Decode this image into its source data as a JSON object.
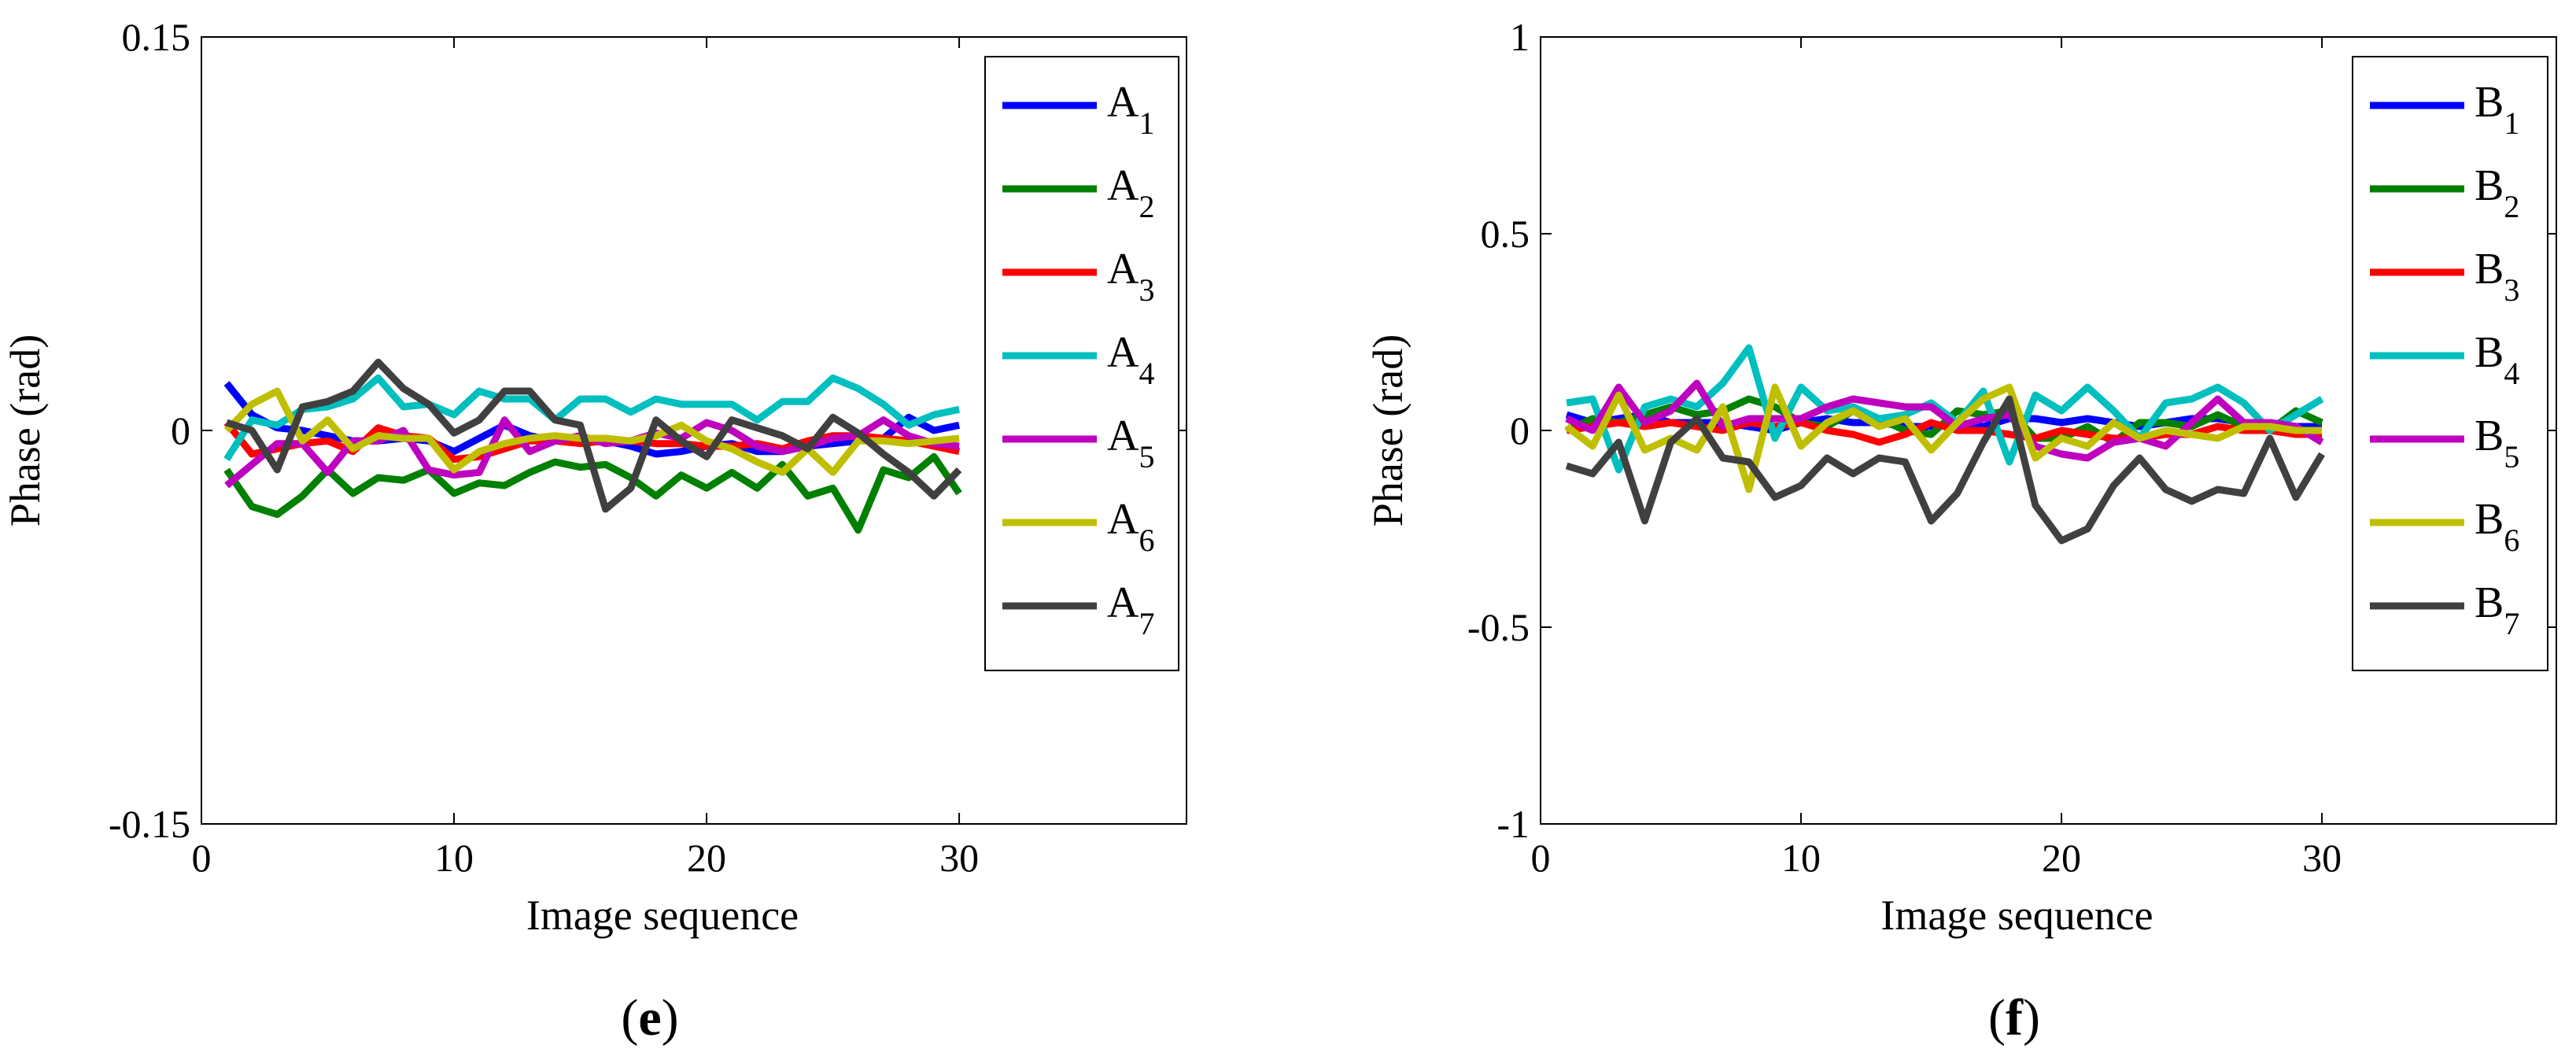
{
  "chart_data": [
    {
      "type": "line",
      "panel_label": "e",
      "xlabel": "Image sequence",
      "ylabel": "Phase (rad)",
      "xlim": [
        0,
        39
      ],
      "ylim": [
        -0.15,
        0.15
      ],
      "x_ticks": [
        0,
        10,
        20,
        30
      ],
      "x_tick_labels": [
        "0",
        "10",
        "20",
        "30"
      ],
      "y_ticks": [
        -0.15,
        0,
        0.15
      ],
      "y_tick_labels": [
        "-0.15",
        "0",
        "0.15"
      ],
      "grid": false,
      "legend_position": "top-right",
      "x": [
        1,
        2,
        3,
        4,
        5,
        6,
        7,
        8,
        9,
        10,
        11,
        12,
        13,
        14,
        15,
        16,
        17,
        18,
        19,
        20,
        21,
        22,
        23,
        24,
        25,
        26,
        27,
        28,
        29,
        30
      ],
      "series": [
        {
          "name": "A",
          "sub": "1",
          "color": "#0000ff",
          "values": [
            0.018,
            0.006,
            0.001,
            0.0,
            -0.002,
            -0.004,
            -0.004,
            -0.003,
            -0.004,
            -0.008,
            -0.003,
            0.002,
            -0.002,
            -0.004,
            -0.004,
            -0.004,
            -0.006,
            -0.009,
            -0.008,
            -0.006,
            -0.005,
            -0.008,
            -0.008,
            -0.006,
            -0.005,
            -0.004,
            -0.003,
            0.005,
            0.0,
            0.002
          ]
        },
        {
          "name": "A",
          "sub": "2",
          "color": "#008000",
          "values": [
            -0.015,
            -0.029,
            -0.032,
            -0.025,
            -0.015,
            -0.024,
            -0.018,
            -0.019,
            -0.015,
            -0.024,
            -0.02,
            -0.021,
            -0.016,
            -0.012,
            -0.014,
            -0.013,
            -0.018,
            -0.025,
            -0.017,
            -0.022,
            -0.016,
            -0.022,
            -0.013,
            -0.025,
            -0.022,
            -0.038,
            -0.015,
            -0.018,
            -0.01,
            -0.024
          ]
        },
        {
          "name": "A",
          "sub": "3",
          "color": "#ff0000",
          "values": [
            0.003,
            -0.009,
            -0.007,
            -0.005,
            -0.004,
            -0.008,
            0.001,
            -0.002,
            -0.003,
            -0.011,
            -0.01,
            -0.007,
            -0.004,
            -0.004,
            -0.005,
            -0.004,
            -0.004,
            -0.005,
            -0.005,
            -0.006,
            -0.006,
            -0.005,
            -0.007,
            -0.004,
            -0.002,
            -0.002,
            -0.003,
            -0.004,
            -0.006,
            -0.008
          ]
        },
        {
          "name": "A",
          "sub": "4",
          "color": "#00bfbf",
          "values": [
            -0.011,
            0.004,
            0.002,
            0.008,
            0.009,
            0.012,
            0.02,
            0.009,
            0.01,
            0.006,
            0.015,
            0.012,
            0.012,
            0.004,
            0.012,
            0.012,
            0.007,
            0.012,
            0.01,
            0.01,
            0.01,
            0.004,
            0.011,
            0.011,
            0.02,
            0.016,
            0.01,
            0.002,
            0.006,
            0.008
          ]
        },
        {
          "name": "A",
          "sub": "5",
          "color": "#bf00bf",
          "values": [
            -0.021,
            -0.013,
            -0.005,
            -0.005,
            -0.016,
            -0.004,
            -0.004,
            0.0,
            -0.015,
            -0.017,
            -0.016,
            0.004,
            -0.008,
            -0.004,
            -0.002,
            -0.005,
            -0.004,
            -0.001,
            -0.003,
            0.003,
            0.0,
            -0.006,
            -0.008,
            -0.006,
            -0.003,
            -0.002,
            0.004,
            -0.002,
            -0.005,
            -0.006
          ]
        },
        {
          "name": "A",
          "sub": "6",
          "color": "#bfbf00",
          "values": [
            0.0,
            0.01,
            0.015,
            -0.004,
            0.004,
            -0.007,
            -0.002,
            -0.003,
            -0.003,
            -0.015,
            -0.008,
            -0.005,
            -0.003,
            -0.002,
            -0.003,
            -0.003,
            -0.004,
            -0.002,
            0.002,
            -0.004,
            -0.007,
            -0.012,
            -0.016,
            -0.007,
            -0.016,
            -0.004,
            -0.004,
            -0.005,
            -0.004,
            -0.003
          ]
        },
        {
          "name": "A",
          "sub": "7",
          "color": "#404040",
          "values": [
            0.003,
            0.0,
            -0.015,
            0.009,
            0.011,
            0.015,
            0.026,
            0.016,
            0.01,
            -0.001,
            0.004,
            0.015,
            0.015,
            0.004,
            0.002,
            -0.03,
            -0.022,
            0.004,
            -0.004,
            -0.01,
            0.004,
            0.001,
            -0.002,
            -0.007,
            0.005,
            -0.001,
            -0.009,
            -0.016,
            -0.025,
            -0.015
          ]
        }
      ]
    },
    {
      "type": "line",
      "panel_label": "f",
      "xlabel": "Image sequence",
      "ylabel": "Phase (rad)",
      "xlim": [
        0,
        39
      ],
      "ylim": [
        -1,
        1
      ],
      "x_ticks": [
        0,
        10,
        20,
        30
      ],
      "x_tick_labels": [
        "0",
        "10",
        "20",
        "30"
      ],
      "y_ticks": [
        -1,
        -0.5,
        0,
        0.5,
        1
      ],
      "y_tick_labels": [
        "-1",
        "-0.5",
        "0",
        "0.5",
        "1"
      ],
      "grid": false,
      "legend_position": "top-right",
      "x": [
        1,
        2,
        3,
        4,
        5,
        6,
        7,
        8,
        9,
        10,
        11,
        12,
        13,
        14,
        15,
        16,
        17,
        18,
        19,
        20,
        21,
        22,
        23,
        24,
        25,
        26,
        27,
        28,
        29,
        30
      ],
      "series": [
        {
          "name": "B",
          "sub": "1",
          "color": "#0000ff",
          "values": [
            0.04,
            0.02,
            0.03,
            0.04,
            0.02,
            0.02,
            0.02,
            0.01,
            0.0,
            0.02,
            0.03,
            0.02,
            0.02,
            0.01,
            0.01,
            0.02,
            0.01,
            0.03,
            0.03,
            0.02,
            0.03,
            0.02,
            0.01,
            0.02,
            0.03,
            0.03,
            0.02,
            0.02,
            0.01,
            0.01
          ]
        },
        {
          "name": "B",
          "sub": "2",
          "color": "#008000",
          "values": [
            0.0,
            0.03,
            0.02,
            0.04,
            0.06,
            0.04,
            0.05,
            0.08,
            0.06,
            0.02,
            0.01,
            0.05,
            0.03,
            0.0,
            -0.01,
            0.05,
            0.04,
            0.05,
            -0.02,
            -0.02,
            0.01,
            -0.03,
            0.02,
            0.02,
            0.01,
            0.04,
            0.01,
            0.0,
            0.05,
            0.02
          ]
        },
        {
          "name": "B",
          "sub": "3",
          "color": "#ff0000",
          "values": [
            0.0,
            0.01,
            0.02,
            0.01,
            0.02,
            0.01,
            0.0,
            0.02,
            0.01,
            0.02,
            0.0,
            -0.01,
            -0.03,
            -0.01,
            0.02,
            0.0,
            0.0,
            -0.01,
            -0.02,
            0.0,
            -0.01,
            -0.02,
            -0.02,
            -0.01,
            -0.01,
            0.01,
            0.0,
            0.0,
            -0.01,
            -0.01
          ]
        },
        {
          "name": "B",
          "sub": "4",
          "color": "#00bfbf",
          "values": [
            0.07,
            0.08,
            -0.1,
            0.06,
            0.08,
            0.06,
            0.12,
            0.21,
            -0.02,
            0.11,
            0.05,
            0.06,
            0.03,
            0.04,
            0.07,
            0.02,
            0.1,
            -0.08,
            0.09,
            0.05,
            0.11,
            0.05,
            -0.02,
            0.07,
            0.08,
            0.11,
            0.07,
            0.0,
            0.04,
            0.08
          ]
        },
        {
          "name": "B",
          "sub": "5",
          "color": "#bf00bf",
          "values": [
            0.03,
            0.0,
            0.11,
            0.02,
            0.05,
            0.12,
            0.01,
            0.03,
            0.03,
            0.03,
            0.06,
            0.08,
            0.07,
            0.06,
            0.06,
            0.01,
            0.03,
            0.04,
            -0.04,
            -0.06,
            -0.07,
            -0.03,
            -0.02,
            -0.04,
            0.02,
            0.08,
            0.02,
            0.02,
            0.01,
            -0.03
          ]
        },
        {
          "name": "B",
          "sub": "6",
          "color": "#bfbf00",
          "values": [
            0.01,
            -0.04,
            0.09,
            -0.05,
            -0.02,
            -0.05,
            0.06,
            -0.15,
            0.11,
            -0.04,
            0.02,
            0.05,
            0.01,
            0.03,
            -0.05,
            0.02,
            0.08,
            0.11,
            -0.07,
            -0.02,
            -0.04,
            0.02,
            -0.02,
            0.0,
            -0.01,
            -0.02,
            0.01,
            0.01,
            0.0,
            0.0
          ]
        },
        {
          "name": "B",
          "sub": "7",
          "color": "#404040",
          "values": [
            -0.09,
            -0.11,
            -0.03,
            -0.23,
            -0.03,
            0.03,
            -0.07,
            -0.08,
            -0.17,
            -0.14,
            -0.07,
            -0.11,
            -0.07,
            -0.08,
            -0.23,
            -0.16,
            -0.03,
            0.08,
            -0.19,
            -0.28,
            -0.25,
            -0.14,
            -0.07,
            -0.15,
            -0.18,
            -0.15,
            -0.16,
            -0.02,
            -0.17,
            -0.06
          ]
        }
      ]
    }
  ]
}
